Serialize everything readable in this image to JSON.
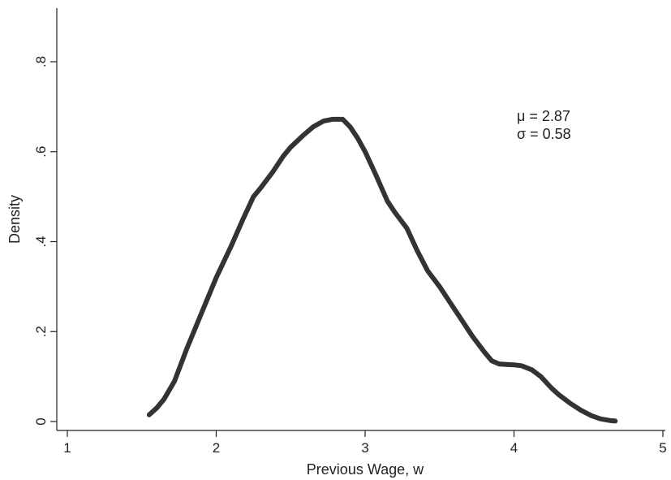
{
  "chart_data": {
    "type": "line",
    "title": "",
    "xlabel": "Previous Wage, w",
    "ylabel": "Density",
    "xlim": [
      1,
      5
    ],
    "ylim": [
      0,
      0.8
    ],
    "grid": false,
    "x_ticks": [
      {
        "value": 1,
        "label": "1"
      },
      {
        "value": 2,
        "label": "2"
      },
      {
        "value": 3,
        "label": "3"
      },
      {
        "value": 4,
        "label": "4"
      },
      {
        "value": 5,
        "label": "5"
      }
    ],
    "y_ticks": [
      {
        "value": 0,
        "label": "0"
      },
      {
        "value": 0.2,
        "label": ".2"
      },
      {
        "value": 0.4,
        "label": ".4"
      },
      {
        "value": 0.6,
        "label": ".6"
      },
      {
        "value": 0.8,
        "label": ".8"
      }
    ],
    "series": [
      {
        "color": "#333333",
        "x": [
          1.55,
          1.6,
          1.65,
          1.72,
          1.8,
          1.9,
          2.0,
          2.05,
          2.1,
          2.18,
          2.25,
          2.3,
          2.38,
          2.45,
          2.5,
          2.58,
          2.65,
          2.72,
          2.78,
          2.85,
          2.9,
          2.95,
          3.0,
          3.07,
          3.15,
          3.2,
          3.28,
          3.35,
          3.42,
          3.5,
          3.58,
          3.65,
          3.72,
          3.8,
          3.85,
          3.9,
          3.95,
          4.0,
          4.05,
          4.12,
          4.18,
          4.25,
          4.3,
          4.38,
          4.45,
          4.52,
          4.58,
          4.65,
          4.68
        ],
        "y": [
          0.015,
          0.03,
          0.05,
          0.09,
          0.16,
          0.24,
          0.32,
          0.355,
          0.39,
          0.45,
          0.5,
          0.52,
          0.555,
          0.59,
          0.61,
          0.635,
          0.655,
          0.668,
          0.672,
          0.672,
          0.655,
          0.63,
          0.6,
          0.55,
          0.49,
          0.465,
          0.43,
          0.38,
          0.335,
          0.3,
          0.26,
          0.225,
          0.19,
          0.155,
          0.135,
          0.128,
          0.127,
          0.126,
          0.124,
          0.115,
          0.1,
          0.075,
          0.06,
          0.04,
          0.025,
          0.013,
          0.006,
          0.002,
          0.001
        ]
      }
    ],
    "annotations": [
      {
        "text": "μ = 2.87",
        "x": 4.0,
        "y": 0.67
      },
      {
        "text": "σ = 0.58",
        "x": 4.0,
        "y": 0.63
      }
    ]
  }
}
